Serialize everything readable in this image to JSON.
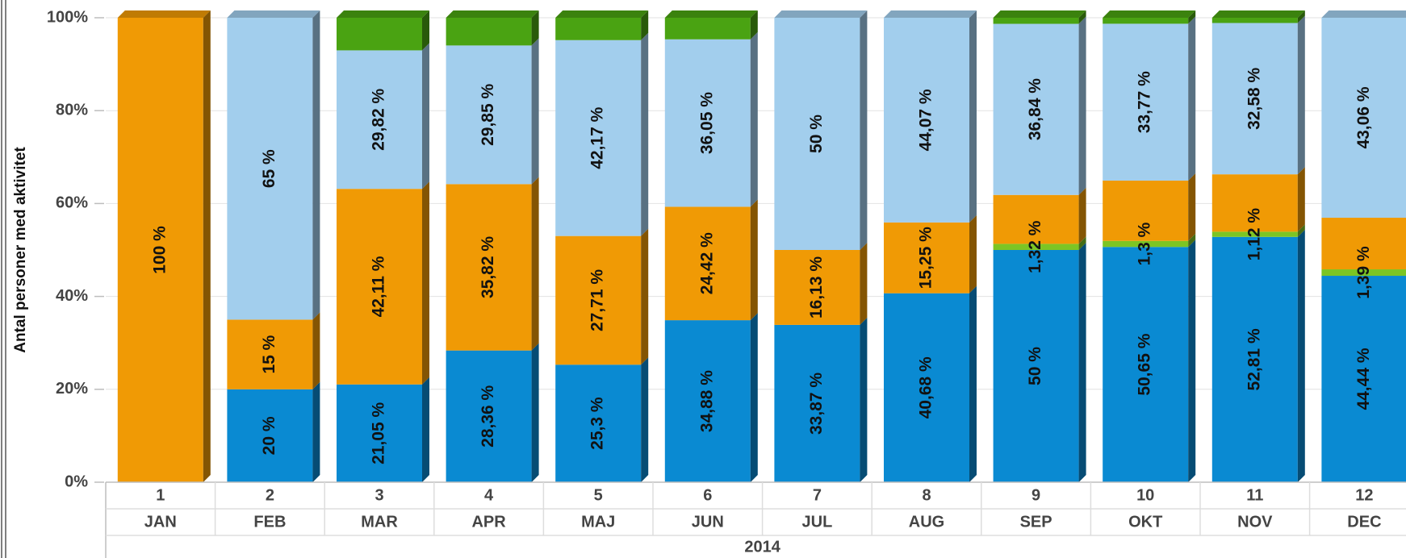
{
  "chart_data": {
    "type": "stacked_bar_3d",
    "y_label": "Antal personer med aktivitet",
    "categories": [
      "JAN",
      "FEB",
      "MAR",
      "APR",
      "MAJ",
      "JUN",
      "JUL",
      "AUG",
      "SEP",
      "OKT",
      "NOV",
      "DEC"
    ],
    "category_numbers": [
      "1",
      "2",
      "3",
      "4",
      "5",
      "6",
      "7",
      "8",
      "9",
      "10",
      "11",
      "12"
    ],
    "group_label": "2014",
    "ylim": [
      0,
      100
    ],
    "yticks": [
      {
        "value": 0,
        "label": "0%"
      },
      {
        "value": 20,
        "label": "20%"
      },
      {
        "value": 40,
        "label": "40%"
      },
      {
        "value": 60,
        "label": "60%"
      },
      {
        "value": 80,
        "label": "80%"
      },
      {
        "value": 100,
        "label": "100%"
      }
    ],
    "grid": true,
    "series": [
      {
        "color": "#0a8ad2",
        "values": [
          0,
          20,
          21.05,
          28.36,
          25.3,
          34.88,
          33.87,
          40.68,
          50,
          50.65,
          52.81,
          44.44
        ],
        "value_labels": [
          null,
          "20 %",
          "21,05 %",
          "28,36 %",
          "25,3 %",
          "34,88 %",
          "33,87 %",
          "40,68 %",
          "50 %",
          "50,65 %",
          "52,81 %",
          "44,44 %"
        ]
      },
      {
        "color": "#7cc524",
        "values": [
          0,
          0,
          0,
          0,
          0,
          0,
          0,
          0,
          1.32,
          1.3,
          1.12,
          1.39
        ],
        "value_labels": [
          null,
          null,
          null,
          null,
          null,
          null,
          null,
          null,
          "1,32 %",
          "1,3 %",
          "1,12 %",
          "1,39 %"
        ]
      },
      {
        "color": "#f09a05",
        "values": [
          100,
          15,
          42.11,
          35.82,
          27.71,
          24.42,
          16.13,
          15.25,
          10.53,
          12.99,
          12.36,
          11.11
        ],
        "value_labels": [
          "100 %",
          "15 %",
          "42,11 %",
          "35,82 %",
          "27,71 %",
          "24,42 %",
          "16,13 %",
          "15,25 %",
          null,
          null,
          null,
          null
        ]
      },
      {
        "color": "#a2ceed",
        "values": [
          0,
          65,
          29.82,
          29.85,
          42.17,
          36.05,
          50,
          44.07,
          36.84,
          33.77,
          32.58,
          43.06
        ],
        "value_labels": [
          null,
          "65 %",
          "29,82 %",
          "29,85 %",
          "42,17 %",
          "36,05 %",
          "50 %",
          "44,07 %",
          "36,84 %",
          "33,77 %",
          "32,58 %",
          "43,06 %"
        ]
      },
      {
        "color": "#4aa312",
        "values": [
          0,
          0,
          7.02,
          5.97,
          4.82,
          4.65,
          0,
          0,
          1.31,
          1.29,
          1.13,
          0
        ],
        "value_labels": [
          null,
          null,
          null,
          null,
          null,
          null,
          null,
          null,
          null,
          null,
          null,
          null
        ]
      }
    ]
  }
}
